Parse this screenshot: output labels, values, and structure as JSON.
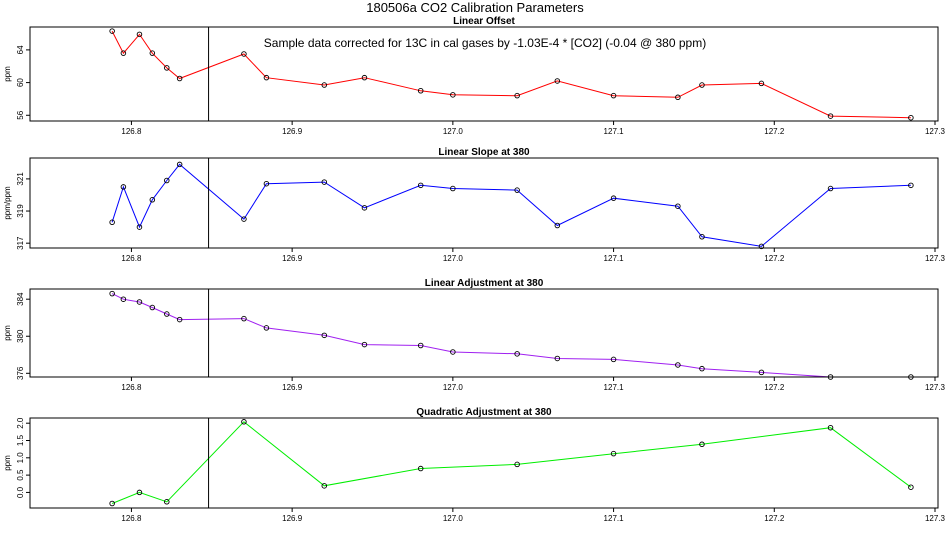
{
  "figure": {
    "title": "180506a   CO2 Calibration Parameters"
  },
  "chart_data": [
    {
      "type": "line",
      "title": "Linear Offset",
      "ylabel": "ppm",
      "annotation": "Sample data corrected for 13C in cal gases by -1.03E-4 * [CO2] (-0.04 @ 380 ppm)",
      "color": "#ff0000",
      "xlim": [
        126.74,
        127.3
      ],
      "ylim": [
        55.3,
        66.8
      ],
      "xticks": [
        126.8,
        126.9,
        127.0,
        127.1,
        127.2,
        127.3
      ],
      "xtick_labels": [
        "126.8",
        "126.9",
        "127.0",
        "127.1",
        "127.2",
        "127.3"
      ],
      "yticks": [
        56,
        60,
        64
      ],
      "ytick_labels": [
        "56",
        "60",
        "64"
      ],
      "vline_x": 126.848,
      "grid": false,
      "x": [
        126.788,
        126.795,
        126.805,
        126.813,
        126.822,
        126.83,
        126.87,
        126.884,
        126.92,
        126.945,
        126.98,
        127.0,
        127.04,
        127.065,
        127.1,
        127.14,
        127.155,
        127.192,
        127.235,
        127.285
      ],
      "y": [
        66.3,
        63.6,
        65.9,
        63.6,
        61.8,
        60.5,
        63.5,
        60.6,
        59.7,
        60.6,
        59.0,
        58.5,
        58.4,
        60.2,
        58.4,
        58.2,
        59.7,
        59.9,
        55.9,
        55.7
      ]
    },
    {
      "type": "line",
      "title": "Linear Slope at 380",
      "ylabel": "ppm/ppm",
      "color": "#0000ff",
      "xlim": [
        126.74,
        127.3
      ],
      "ylim": [
        316.7,
        322.3
      ],
      "xticks": [
        126.8,
        126.9,
        127.0,
        127.1,
        127.2,
        127.3
      ],
      "xtick_labels": [
        "126.8",
        "126.9",
        "127.0",
        "127.1",
        "127.2",
        "127.3"
      ],
      "yticks": [
        317,
        319,
        321
      ],
      "ytick_labels": [
        "317",
        "319",
        "321"
      ],
      "vline_x": 126.848,
      "grid": false,
      "x": [
        126.788,
        126.795,
        126.805,
        126.813,
        126.822,
        126.83,
        126.87,
        126.884,
        126.92,
        126.945,
        126.98,
        127.0,
        127.04,
        127.065,
        127.1,
        127.14,
        127.155,
        127.192,
        127.235,
        127.285
      ],
      "y": [
        318.3,
        320.5,
        318.0,
        319.7,
        320.9,
        321.9,
        318.5,
        320.7,
        320.8,
        319.2,
        320.6,
        320.4,
        320.3,
        318.1,
        319.8,
        319.3,
        317.4,
        316.8,
        320.4,
        320.6
      ]
    },
    {
      "type": "line",
      "title": "Linear Adjustment at 380",
      "ylabel": "ppm",
      "color": "#a020f0",
      "xlim": [
        126.74,
        127.3
      ],
      "ylim": [
        375.6,
        385.1
      ],
      "xticks": [
        126.8,
        126.9,
        127.0,
        127.1,
        127.2,
        127.3
      ],
      "xtick_labels": [
        "126.8",
        "126.9",
        "127.0",
        "127.1",
        "127.2",
        "127.3"
      ],
      "yticks": [
        376,
        380,
        384
      ],
      "ytick_labels": [
        "376",
        "380",
        "384"
      ],
      "vline_x": 126.848,
      "grid": false,
      "x": [
        126.788,
        126.795,
        126.805,
        126.813,
        126.822,
        126.83,
        126.87,
        126.884,
        126.92,
        126.945,
        126.98,
        127.0,
        127.04,
        127.065,
        127.1,
        127.14,
        127.155,
        127.192,
        127.235,
        127.285
      ],
      "y": [
        384.6,
        384.0,
        383.7,
        383.1,
        382.4,
        381.8,
        381.9,
        380.9,
        380.1,
        379.1,
        379.0,
        378.3,
        378.1,
        377.6,
        377.5,
        376.9,
        376.5,
        376.1,
        375.6,
        375.6
      ]
    },
    {
      "type": "line",
      "title": "Quadratic Adjustment at 380",
      "ylabel": "ppm",
      "color": "#00ee00",
      "xlim": [
        126.74,
        127.3
      ],
      "ylim": [
        -0.45,
        2.15
      ],
      "xticks": [
        126.8,
        126.9,
        127.0,
        127.1,
        127.2,
        127.3
      ],
      "xtick_labels": [
        "126.8",
        "126.9",
        "127.0",
        "127.1",
        "127.2",
        "127.3"
      ],
      "yticks": [
        0.0,
        0.5,
        1.0,
        1.5,
        2.0
      ],
      "ytick_labels": [
        "0.0",
        "0.5",
        "1.0",
        "1.5",
        "2.0"
      ],
      "vline_x": 126.848,
      "grid": false,
      "x": [
        126.788,
        126.805,
        126.822,
        126.87,
        126.92,
        126.98,
        127.04,
        127.1,
        127.155,
        127.235,
        127.285
      ],
      "y": [
        -0.32,
        0.0,
        -0.27,
        2.04,
        0.19,
        0.69,
        0.81,
        1.12,
        1.39,
        1.87,
        0.15
      ]
    }
  ]
}
